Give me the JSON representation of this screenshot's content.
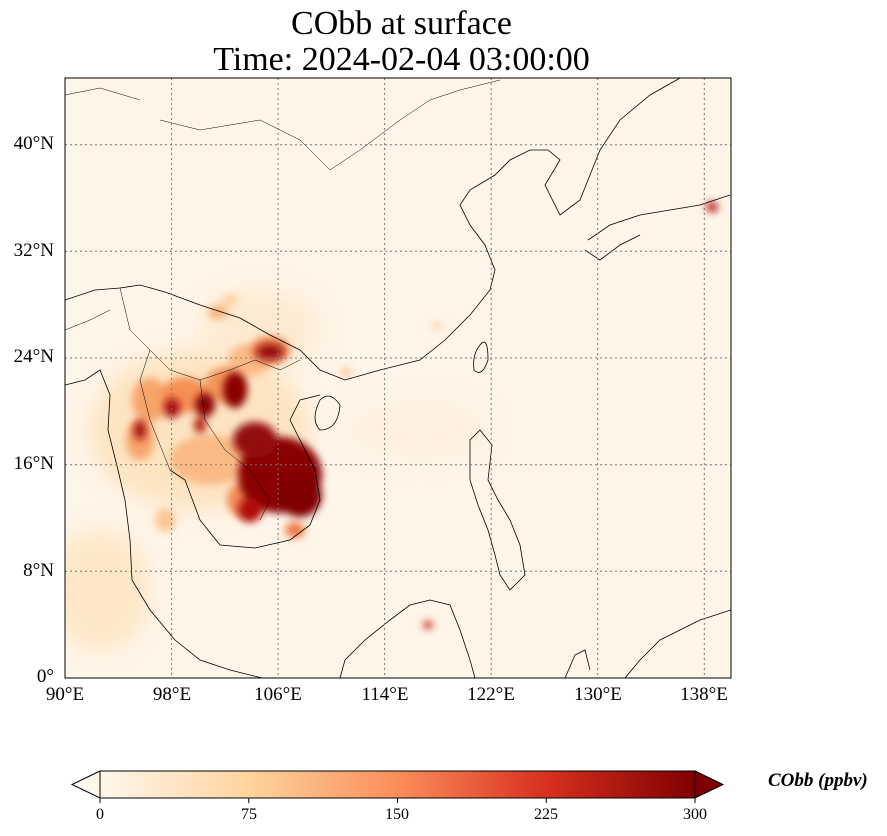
{
  "title": "CObb at surface",
  "subtitle": "Time: 2024-02-04 03:00:00",
  "map": {
    "variable": "CObb",
    "level": "surface",
    "time": "2024-02-04 03:00:00",
    "extent_lon": [
      90,
      140
    ],
    "extent_lat": [
      0,
      45
    ],
    "lon_ticks": [
      "90°E",
      "98°E",
      "106°E",
      "114°E",
      "122°E",
      "130°E",
      "138°E"
    ],
    "lat_ticks": [
      "0°",
      "8°N",
      "16°N",
      "24°N",
      "32°N",
      "40°N"
    ],
    "gridlines": "dotted",
    "colormap": "OrRd",
    "high_concentration_regions": [
      "Laos",
      "Cambodia",
      "northern Thailand",
      "Myanmar",
      "northern Vietnam",
      "Japan (Honshu)",
      "Borneo (north)"
    ]
  },
  "colorbar": {
    "label": "CObb (ppbv)",
    "ticks": [
      "0",
      "75",
      "150",
      "225",
      "300"
    ],
    "min": 0,
    "max": 300,
    "extend": "both",
    "colors": [
      "#fff7ec",
      "#fdd49e",
      "#fc8d59",
      "#d7301f",
      "#7f0000"
    ]
  }
}
